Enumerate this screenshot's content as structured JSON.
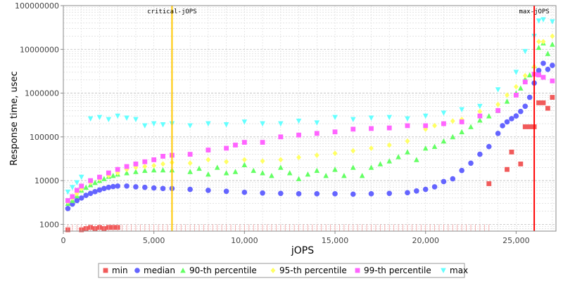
{
  "chart_data": {
    "type": "scatter",
    "xlabel": "jOPS",
    "ylabel": "Response time, usec",
    "xlim": [
      0,
      27200
    ],
    "ylim": [
      700,
      100000000
    ],
    "log_y": true,
    "grid": true,
    "legend_position": "bottom",
    "x_ticks": [
      {
        "value": 0,
        "label": "0"
      },
      {
        "value": 5000,
        "label": "5,000"
      },
      {
        "value": 10000,
        "label": "10,000"
      },
      {
        "value": 15000,
        "label": "15,000"
      },
      {
        "value": 20000,
        "label": "20,000"
      },
      {
        "value": 25000,
        "label": "25,000"
      }
    ],
    "y_ticks": [
      {
        "value": 1000,
        "label": "1000"
      },
      {
        "value": 10000,
        "label": "10000"
      },
      {
        "value": 100000,
        "label": "100000"
      },
      {
        "value": 1000000,
        "label": "1000000"
      },
      {
        "value": 10000000,
        "label": "10000000"
      },
      {
        "value": 100000000,
        "label": "100000000"
      }
    ],
    "vlines": [
      {
        "label": "critical-jOPS",
        "x": 6000,
        "color": "#ffc800"
      },
      {
        "label": "max-jOPS",
        "x": 26000,
        "color": "#ff0000"
      }
    ],
    "series": [
      {
        "name": "min",
        "marker": "square",
        "color": "#f15a5a",
        "points": [
          [
            250,
            750
          ],
          [
            1000,
            750
          ],
          [
            1250,
            800
          ],
          [
            1500,
            850
          ],
          [
            1750,
            800
          ],
          [
            2000,
            850
          ],
          [
            2250,
            800
          ],
          [
            2500,
            850
          ],
          [
            2750,
            850
          ],
          [
            3000,
            850
          ],
          [
            23500,
            8500
          ],
          [
            24500,
            18000
          ],
          [
            24750,
            45000
          ],
          [
            25250,
            24000
          ],
          [
            25500,
            170000
          ],
          [
            25750,
            170000
          ],
          [
            26000,
            170000
          ],
          [
            26250,
            600000
          ],
          [
            26500,
            600000
          ],
          [
            26750,
            450000
          ],
          [
            27000,
            800000
          ]
        ]
      },
      {
        "name": "median",
        "marker": "circle",
        "color": "#6464ff",
        "points": [
          [
            250,
            2300
          ],
          [
            500,
            2900
          ],
          [
            750,
            3500
          ],
          [
            1000,
            4000
          ],
          [
            1250,
            4600
          ],
          [
            1500,
            5100
          ],
          [
            1750,
            5600
          ],
          [
            2000,
            6100
          ],
          [
            2250,
            6600
          ],
          [
            2500,
            7000
          ],
          [
            2750,
            7300
          ],
          [
            3000,
            7500
          ],
          [
            3500,
            7500
          ],
          [
            4000,
            7200
          ],
          [
            4500,
            7000
          ],
          [
            5000,
            6800
          ],
          [
            5500,
            6600
          ],
          [
            6000,
            6600
          ],
          [
            7000,
            6300
          ],
          [
            8000,
            6000
          ],
          [
            9000,
            5700
          ],
          [
            10000,
            5400
          ],
          [
            11000,
            5200
          ],
          [
            12000,
            5100
          ],
          [
            13000,
            5000
          ],
          [
            14000,
            5000
          ],
          [
            15000,
            5000
          ],
          [
            16000,
            4900
          ],
          [
            17000,
            5000
          ],
          [
            18000,
            5100
          ],
          [
            19000,
            5300
          ],
          [
            19500,
            5800
          ],
          [
            20000,
            6300
          ],
          [
            20500,
            7200
          ],
          [
            21000,
            9500
          ],
          [
            21500,
            11000
          ],
          [
            22000,
            17000
          ],
          [
            22500,
            25000
          ],
          [
            23000,
            40000
          ],
          [
            23500,
            60000
          ],
          [
            24000,
            120000
          ],
          [
            24250,
            180000
          ],
          [
            24500,
            220000
          ],
          [
            24750,
            260000
          ],
          [
            25000,
            300000
          ],
          [
            25250,
            380000
          ],
          [
            25500,
            500000
          ],
          [
            25750,
            800000
          ],
          [
            26000,
            1700000
          ],
          [
            26250,
            3300000
          ],
          [
            26500,
            4800000
          ],
          [
            26750,
            3500000
          ],
          [
            27000,
            4300000
          ]
        ]
      },
      {
        "name": "90-th percentile",
        "marker": "triangle",
        "color": "#64ff64",
        "points": [
          [
            250,
            3000
          ],
          [
            500,
            3500
          ],
          [
            750,
            4500
          ],
          [
            1000,
            6000
          ],
          [
            1250,
            7000
          ],
          [
            1500,
            8000
          ],
          [
            1750,
            9000
          ],
          [
            2000,
            10000
          ],
          [
            2250,
            11000
          ],
          [
            2500,
            12500
          ],
          [
            2750,
            13000
          ],
          [
            3000,
            14000
          ],
          [
            3500,
            15000
          ],
          [
            4000,
            16000
          ],
          [
            4500,
            17000
          ],
          [
            5000,
            17500
          ],
          [
            5500,
            17500
          ],
          [
            6000,
            17500
          ],
          [
            7000,
            16000
          ],
          [
            7500,
            19000
          ],
          [
            8000,
            14000
          ],
          [
            8500,
            20000
          ],
          [
            9000,
            15000
          ],
          [
            9500,
            16000
          ],
          [
            10000,
            23000
          ],
          [
            10500,
            17000
          ],
          [
            11000,
            15000
          ],
          [
            11500,
            13000
          ],
          [
            12000,
            20000
          ],
          [
            12500,
            15000
          ],
          [
            13000,
            11000
          ],
          [
            13500,
            14000
          ],
          [
            14000,
            17000
          ],
          [
            14500,
            13000
          ],
          [
            15000,
            18000
          ],
          [
            15500,
            13000
          ],
          [
            16000,
            20000
          ],
          [
            16500,
            13000
          ],
          [
            17000,
            20000
          ],
          [
            17500,
            24000
          ],
          [
            18000,
            28000
          ],
          [
            18500,
            35000
          ],
          [
            19000,
            45000
          ],
          [
            19500,
            30000
          ],
          [
            20000,
            55000
          ],
          [
            20500,
            60000
          ],
          [
            21000,
            80000
          ],
          [
            21500,
            100000
          ],
          [
            22000,
            130000
          ],
          [
            22500,
            170000
          ],
          [
            23000,
            240000
          ],
          [
            23500,
            300000
          ],
          [
            24000,
            400000
          ],
          [
            24500,
            650000
          ],
          [
            25000,
            1000000
          ],
          [
            25250,
            1300000
          ],
          [
            25500,
            2100000
          ],
          [
            25750,
            2600000
          ],
          [
            26000,
            4200000
          ],
          [
            26250,
            11000000
          ],
          [
            26500,
            14000000
          ],
          [
            26750,
            8000000
          ],
          [
            27000,
            13000000
          ]
        ]
      },
      {
        "name": "95-th percentile",
        "marker": "diamond",
        "color": "#ffff64",
        "points": [
          [
            250,
            3300
          ],
          [
            500,
            4000
          ],
          [
            750,
            5000
          ],
          [
            1000,
            6500
          ],
          [
            1500,
            9000
          ],
          [
            2000,
            11000
          ],
          [
            2500,
            13000
          ],
          [
            3000,
            15000
          ],
          [
            3500,
            18000
          ],
          [
            4000,
            20000
          ],
          [
            4500,
            21000
          ],
          [
            5000,
            22000
          ],
          [
            5500,
            24000
          ],
          [
            6000,
            26000
          ],
          [
            7000,
            25000
          ],
          [
            8000,
            30000
          ],
          [
            9000,
            27000
          ],
          [
            10000,
            30000
          ],
          [
            11000,
            28000
          ],
          [
            12000,
            30000
          ],
          [
            13000,
            34000
          ],
          [
            14000,
            38000
          ],
          [
            15000,
            42000
          ],
          [
            16000,
            48000
          ],
          [
            17000,
            55000
          ],
          [
            18000,
            65000
          ],
          [
            19000,
            80000
          ],
          [
            20000,
            150000
          ],
          [
            20500,
            180000
          ],
          [
            21000,
            200000
          ],
          [
            21500,
            230000
          ],
          [
            22000,
            250000
          ],
          [
            23000,
            380000
          ],
          [
            24000,
            550000
          ],
          [
            24500,
            900000
          ],
          [
            25000,
            1400000
          ],
          [
            25500,
            2500000
          ],
          [
            26000,
            4000000
          ],
          [
            26250,
            15000000
          ],
          [
            26500,
            15000000
          ],
          [
            27000,
            20000000
          ]
        ]
      },
      {
        "name": "99-th percentile",
        "marker": "square",
        "color": "#ff64ff",
        "points": [
          [
            250,
            3500
          ],
          [
            500,
            4300
          ],
          [
            750,
            6000
          ],
          [
            1000,
            7500
          ],
          [
            1500,
            10000
          ],
          [
            2000,
            12000
          ],
          [
            2500,
            15000
          ],
          [
            3000,
            18000
          ],
          [
            3500,
            21000
          ],
          [
            4000,
            24000
          ],
          [
            4500,
            27000
          ],
          [
            5000,
            30000
          ],
          [
            5500,
            36000
          ],
          [
            6000,
            38000
          ],
          [
            7000,
            40000
          ],
          [
            8000,
            50000
          ],
          [
            9000,
            55000
          ],
          [
            9500,
            65000
          ],
          [
            10000,
            75000
          ],
          [
            11000,
            75000
          ],
          [
            12000,
            100000
          ],
          [
            13000,
            110000
          ],
          [
            14000,
            120000
          ],
          [
            15000,
            130000
          ],
          [
            16000,
            150000
          ],
          [
            17000,
            155000
          ],
          [
            18000,
            160000
          ],
          [
            19000,
            180000
          ],
          [
            20000,
            180000
          ],
          [
            21000,
            200000
          ],
          [
            22000,
            220000
          ],
          [
            23000,
            300000
          ],
          [
            24000,
            400000
          ],
          [
            25000,
            900000
          ],
          [
            25500,
            1800000
          ],
          [
            26000,
            2700000
          ],
          [
            26250,
            2600000
          ],
          [
            26500,
            2300000
          ],
          [
            27000,
            1900000
          ]
        ]
      },
      {
        "name": "max",
        "marker": "triangle-down",
        "color": "#64ffff",
        "points": [
          [
            250,
            5500
          ],
          [
            500,
            7000
          ],
          [
            750,
            9000
          ],
          [
            1000,
            12000
          ],
          [
            1500,
            260000
          ],
          [
            2000,
            280000
          ],
          [
            2500,
            250000
          ],
          [
            3000,
            300000
          ],
          [
            3500,
            270000
          ],
          [
            4000,
            250000
          ],
          [
            4500,
            180000
          ],
          [
            5000,
            200000
          ],
          [
            5500,
            190000
          ],
          [
            6000,
            200000
          ],
          [
            7000,
            180000
          ],
          [
            8000,
            200000
          ],
          [
            9000,
            190000
          ],
          [
            10000,
            220000
          ],
          [
            11000,
            200000
          ],
          [
            12000,
            200000
          ],
          [
            13000,
            230000
          ],
          [
            14000,
            210000
          ],
          [
            15000,
            280000
          ],
          [
            16000,
            250000
          ],
          [
            17000,
            270000
          ],
          [
            18000,
            280000
          ],
          [
            19000,
            260000
          ],
          [
            20000,
            300000
          ],
          [
            21000,
            350000
          ],
          [
            22000,
            420000
          ],
          [
            23000,
            500000
          ],
          [
            24000,
            1200000
          ],
          [
            25000,
            3000000
          ],
          [
            25500,
            9000000
          ],
          [
            26000,
            20000000
          ],
          [
            26250,
            45000000
          ],
          [
            26500,
            48000000
          ],
          [
            27000,
            43000000
          ]
        ]
      }
    ]
  }
}
